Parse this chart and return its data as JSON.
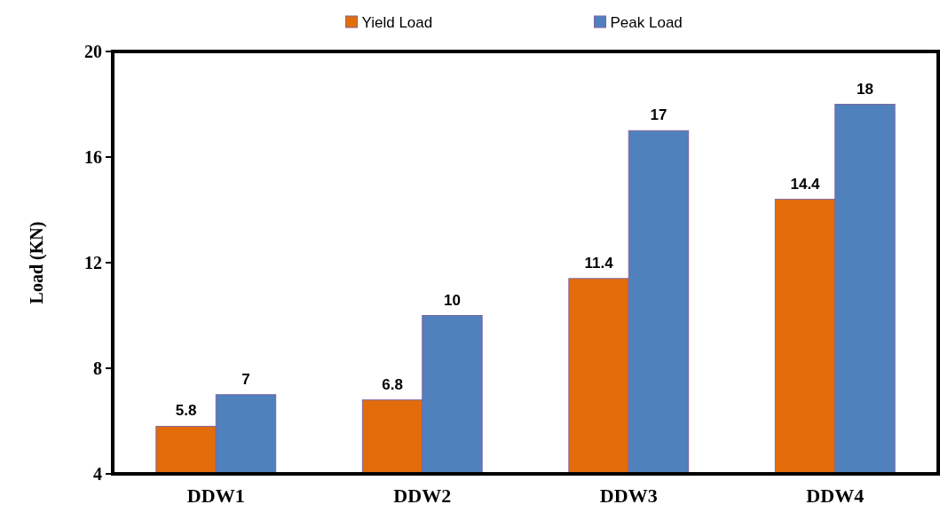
{
  "chart_data": {
    "type": "bar",
    "ylabel": "Load (KN)",
    "categories": [
      "DDW1",
      "DDW2",
      "DDW3",
      "DDW4"
    ],
    "series": [
      {
        "name": "Yield Load",
        "color": "#e36c0a",
        "values": [
          5.8,
          6.8,
          11.4,
          14.4
        ]
      },
      {
        "name": "Peak Load",
        "color": "#4f81bd",
        "values": [
          7,
          10,
          17,
          18
        ]
      }
    ],
    "ylim": [
      4,
      20
    ],
    "yticks": [
      4,
      8,
      12,
      16,
      20
    ],
    "data_labels": true,
    "legend": "top",
    "grid": false
  }
}
